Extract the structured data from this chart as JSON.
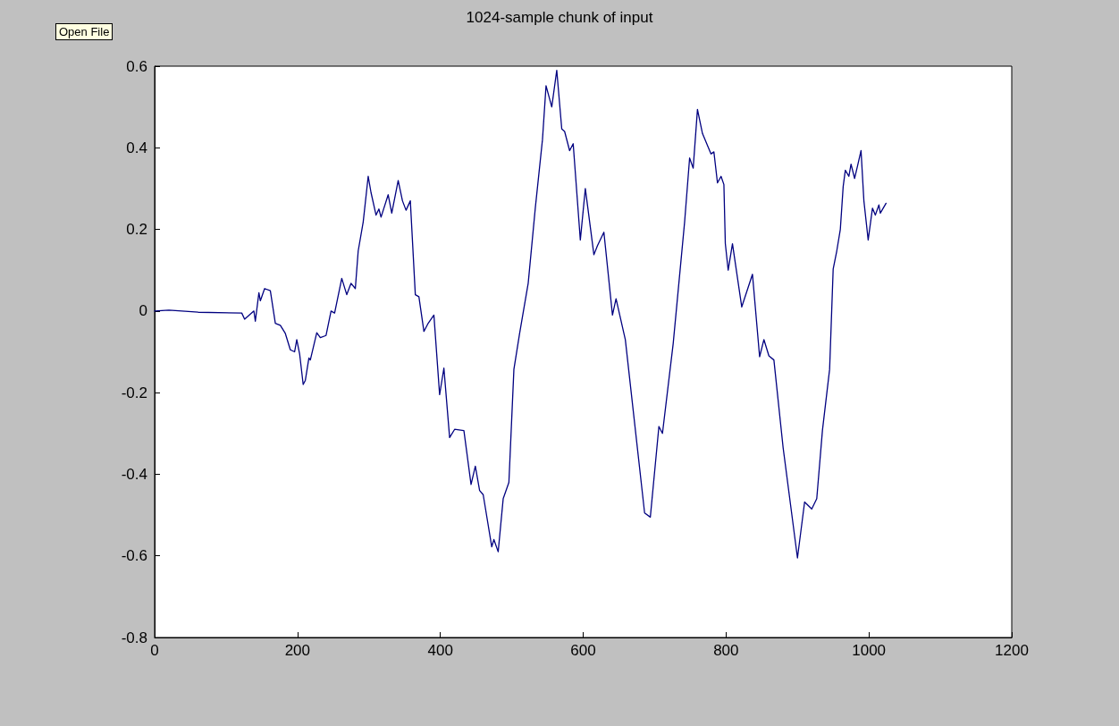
{
  "chart_data": {
    "type": "line",
    "title": "1024-sample chunk of input",
    "annotations": [
      "Open File"
    ],
    "x": [
      0,
      20,
      61,
      122,
      126,
      139,
      141,
      146,
      148,
      154,
      162,
      169,
      176,
      183,
      190,
      196,
      199,
      203,
      208,
      211,
      216,
      218,
      227,
      232,
      240,
      247,
      252,
      262,
      269,
      275,
      281,
      285,
      292,
      299,
      303,
      310,
      314,
      317,
      327,
      332,
      341,
      347,
      352,
      358,
      365,
      370,
      377,
      383,
      391,
      399,
      405,
      413,
      420,
      433,
      443,
      449,
      455,
      460,
      472,
      475,
      481,
      488,
      496,
      503,
      511,
      523,
      533,
      543,
      548,
      556,
      563,
      570,
      574,
      581,
      586,
      596,
      603,
      615,
      620,
      629,
      641,
      646,
      659,
      686,
      694,
      706,
      711,
      726,
      742,
      749,
      754,
      760,
      767,
      779,
      783,
      788,
      793,
      797,
      799,
      803,
      809,
      822,
      837,
      847,
      853,
      860,
      867,
      880,
      900,
      910,
      920,
      927,
      935,
      945,
      950,
      955,
      960,
      964,
      967,
      972,
      975,
      980,
      984,
      989,
      993,
      999,
      1005,
      1009,
      1014,
      1016,
      1024
    ],
    "series": [
      {
        "color": "#000080",
        "values": [
          0,
          0.002,
          -0.003,
          -0.005,
          -0.02,
          0,
          -0.025,
          0.045,
          0.025,
          0.055,
          0.05,
          -0.03,
          -0.035,
          -0.055,
          -0.095,
          -0.1,
          -0.07,
          -0.105,
          -0.18,
          -0.17,
          -0.115,
          -0.12,
          -0.053,
          -0.065,
          -0.06,
          0,
          -0.005,
          0.08,
          0.04,
          0.068,
          0.055,
          0.147,
          0.218,
          0.33,
          0.29,
          0.235,
          0.25,
          0.23,
          0.285,
          0.24,
          0.32,
          0.27,
          0.247,
          0.27,
          0.04,
          0.035,
          -0.05,
          -0.03,
          -0.01,
          -0.205,
          -0.14,
          -0.31,
          -0.29,
          -0.293,
          -0.425,
          -0.38,
          -0.44,
          -0.45,
          -0.578,
          -0.56,
          -0.59,
          -0.46,
          -0.42,
          -0.143,
          -0.055,
          0.068,
          0.253,
          0.42,
          0.552,
          0.5,
          0.59,
          0.446,
          0.44,
          0.393,
          0.41,
          0.174,
          0.3,
          0.138,
          0.16,
          0.193,
          -0.01,
          0.03,
          -0.07,
          -0.495,
          -0.505,
          -0.283,
          -0.3,
          -0.08,
          0.218,
          0.375,
          0.35,
          0.494,
          0.435,
          0.385,
          0.39,
          0.314,
          0.33,
          0.31,
          0.165,
          0.1,
          0.165,
          0.01,
          0.09,
          -0.112,
          -0.07,
          -0.11,
          -0.12,
          -0.336,
          -0.605,
          -0.468,
          -0.485,
          -0.46,
          -0.292,
          -0.143,
          0.103,
          0.147,
          0.2,
          0.305,
          0.345,
          0.33,
          0.36,
          0.325,
          0.355,
          0.393,
          0.27,
          0.174,
          0.252,
          0.235,
          0.26,
          0.24,
          0.264
        ]
      }
    ],
    "xlim": [
      0,
      1200
    ],
    "xticks": [
      0,
      200,
      400,
      600,
      800,
      1000,
      1200
    ],
    "ylim": [
      -0.8,
      0.6
    ],
    "yticks": [
      -0.8,
      -0.6,
      -0.4,
      -0.2,
      0,
      0.2,
      0.4,
      0.6
    ],
    "grid": false,
    "marker": "none",
    "line_style": "solid"
  }
}
